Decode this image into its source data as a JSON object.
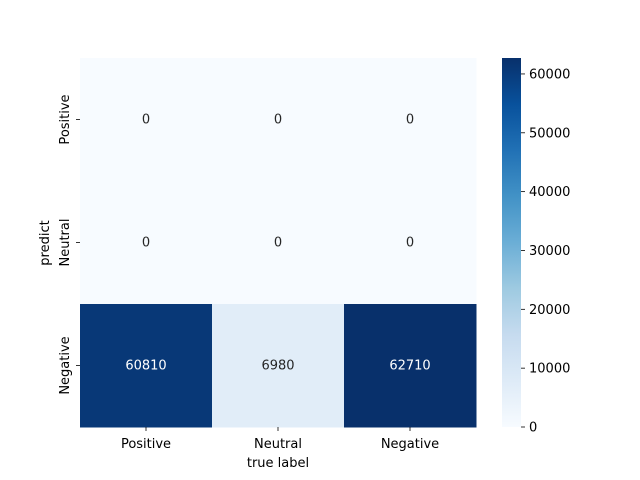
{
  "chart_data": {
    "type": "heatmap",
    "title": "",
    "xlabel": "true label",
    "ylabel": "predict",
    "x_categories": [
      "Positive",
      "Neutral",
      "Negative"
    ],
    "y_categories": [
      "Positive",
      "Neutral",
      "Negative"
    ],
    "values": [
      [
        0,
        0,
        0
      ],
      [
        0,
        0,
        0
      ],
      [
        60810,
        6980,
        62710
      ]
    ],
    "colorbar": {
      "min": 0,
      "max": 62710,
      "ticks": [
        0,
        10000,
        20000,
        30000,
        40000,
        50000,
        60000
      ],
      "colormap": "Blues",
      "colors": {
        "low": "#f7fbff",
        "high": "#08306b"
      }
    },
    "annotation_colors": {
      "dark_text": "#262626",
      "light_text": "#ffffff"
    }
  }
}
